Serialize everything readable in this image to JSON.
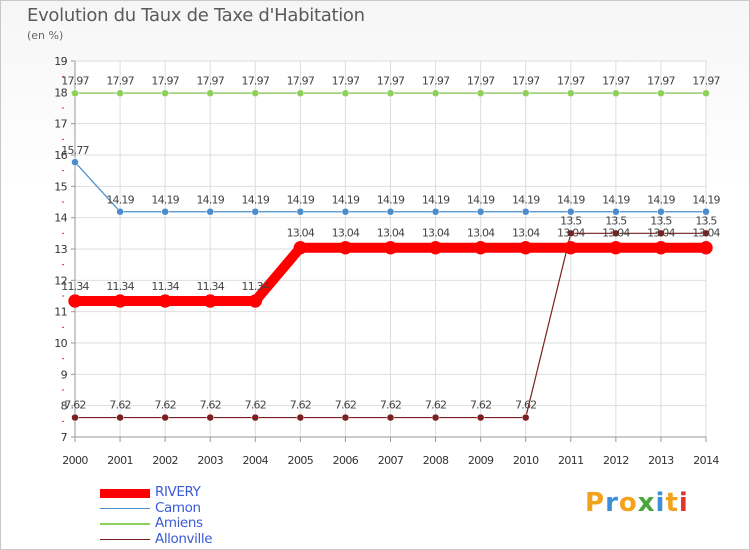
{
  "chart_data": {
    "type": "line",
    "title": "Evolution du Taux de Taxe d'Habitation",
    "subtitle": "(en %)",
    "xlabel": "",
    "ylabel": "",
    "ylim": [
      7,
      19
    ],
    "categories": [
      "2000",
      "2001",
      "2002",
      "2003",
      "2004",
      "2005",
      "2006",
      "2007",
      "2008",
      "2009",
      "2010",
      "2011",
      "2012",
      "2013",
      "2014"
    ],
    "yticks": [
      "7",
      "8",
      "9",
      "10",
      "11",
      "12",
      "13",
      "14",
      "15",
      "16",
      "17",
      "18",
      "19"
    ],
    "legend_position": "bottom-left",
    "series": [
      {
        "name": "RIVERY",
        "color": "#ff0000",
        "values": [
          11.34,
          11.34,
          11.34,
          11.34,
          11.34,
          13.04,
          13.04,
          13.04,
          13.04,
          13.04,
          13.04,
          13.04,
          13.04,
          13.04,
          13.04
        ],
        "labels": [
          "11.34",
          "11.34",
          "11.34",
          "11.34",
          "11.34",
          "13.04",
          "13.04",
          "13.04",
          "13.04",
          "13.04",
          "13.04",
          "13.04",
          "13.04",
          "13.04",
          "13.04"
        ]
      },
      {
        "name": "Camon",
        "color": "#4a8ccc",
        "values": [
          15.77,
          14.19,
          14.19,
          14.19,
          14.19,
          14.19,
          14.19,
          14.19,
          14.19,
          14.19,
          14.19,
          14.19,
          14.19,
          14.19,
          14.19
        ],
        "labels": [
          "15.77",
          "14.19",
          "14.19",
          "14.19",
          "14.19",
          "14.19",
          "14.19",
          "14.19",
          "14.19",
          "14.19",
          "14.19",
          "14.19",
          "14.19",
          "14.19",
          "14.19"
        ]
      },
      {
        "name": "Amiens",
        "color": "#8ed05a",
        "values": [
          17.97,
          17.97,
          17.97,
          17.97,
          17.97,
          17.97,
          17.97,
          17.97,
          17.97,
          17.97,
          17.97,
          17.97,
          17.97,
          17.97,
          17.97
        ],
        "labels": [
          "17.97",
          "17.97",
          "17.97",
          "17.97",
          "17.97",
          "17.97",
          "17.97",
          "17.97",
          "17.97",
          "17.97",
          "17.97",
          "17.97",
          "17.97",
          "17.97",
          "17.97"
        ]
      },
      {
        "name": "Allonville",
        "color": "#7a2020",
        "values": [
          7.62,
          7.62,
          7.62,
          7.62,
          7.62,
          7.62,
          7.62,
          7.62,
          7.62,
          7.62,
          7.62,
          13.5,
          13.5,
          13.5,
          13.5
        ],
        "labels": [
          "7.62",
          "7.62",
          "7.62",
          "7.62",
          "7.62",
          "7.62",
          "7.62",
          "7.62",
          "7.62",
          "7.62",
          "7.62",
          "13.5",
          "13.5",
          "13.5",
          "13.5"
        ]
      }
    ]
  },
  "brand": {
    "name": "Proxiti",
    "letters": [
      "P",
      "r",
      "o",
      "x",
      "i",
      "t",
      "i"
    ],
    "colors": [
      "#f2a21c",
      "#3b8fd9",
      "#f2a21c",
      "#4aa53c",
      "#3b8fd9",
      "#f2a21c",
      "#e2332d"
    ]
  }
}
